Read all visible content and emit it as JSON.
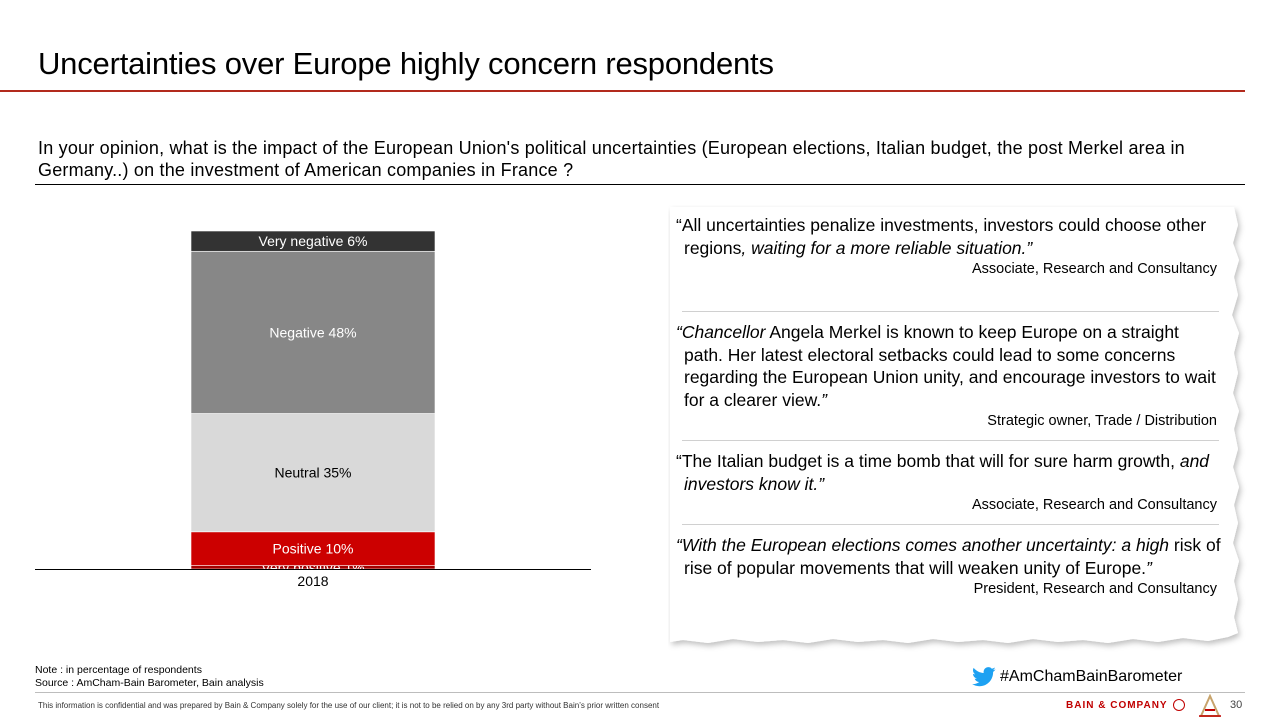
{
  "title": "Uncertainties over Europe highly concern respondents",
  "question": "In your opinion, what is the impact of the European Union's political uncertainties (European elections, Italian budget, the post Merkel area in Germany..) on the investment of American companies in France ?",
  "chart_data": {
    "type": "bar",
    "stacked": true,
    "categories": [
      "2018"
    ],
    "unit": "%",
    "series": [
      {
        "name": "Very positive",
        "label": "Very positive 1%",
        "values": [
          1
        ],
        "color": "#a40000",
        "text_color": "#ffffff"
      },
      {
        "name": "Positive",
        "label": "Positive 10%",
        "values": [
          10
        ],
        "color": "#cc0000",
        "text_color": "#ffffff"
      },
      {
        "name": "Neutral",
        "label": "Neutral 35%",
        "values": [
          35
        ],
        "color": "#d9d9d9",
        "text_color": "#000000"
      },
      {
        "name": "Negative",
        "label": "Negative 48%",
        "values": [
          48
        ],
        "color": "#878787",
        "text_color": "#ffffff"
      },
      {
        "name": "Very negative",
        "label": "Very negative 6%",
        "values": [
          6
        ],
        "color": "#333333",
        "text_color": "#ffffff"
      }
    ],
    "ylim": [
      0,
      100
    ],
    "legend": "none"
  },
  "quotes": [
    {
      "parts": [
        [
          "“All uncertainties penalize investments, investors could choose other regions",
          false
        ],
        [
          ", waiting for a more reliable situation.”",
          true
        ]
      ],
      "attribution": "Associate, Research and Consultancy"
    },
    {
      "parts": [
        [
          "“Chancellor",
          true
        ],
        [
          " Angela Merkel is known to keep Europe on a straight path. Her latest electoral setbacks could lead to some concerns regarding the European Union unity, and encourage investors to wait for a clearer view.",
          false
        ],
        [
          "”",
          true
        ]
      ],
      "attribution": "Strategic owner, Trade / Distribution"
    },
    {
      "parts": [
        [
          "“The Italian budget is a time bomb that will for sure harm growth, ",
          false
        ],
        [
          "and investors know it.”",
          true
        ]
      ],
      "attribution": "Associate, Research and Consultancy"
    },
    {
      "parts": [
        [
          "“With the European elections comes another uncertainty: a high",
          true
        ],
        [
          " risk of rise of popular movements that will weaken unity of Europe.",
          false
        ],
        [
          "”",
          true
        ]
      ],
      "attribution": "President, Research and Consultancy"
    }
  ],
  "note": "Note : in percentage of respondents",
  "source": "Source : AmCham-Bain Barometer, Bain analysis",
  "hashtag": "#AmChamBainBarometer",
  "confidential": "This information is confidential and was prepared by Bain & Company solely for the use of our client; it is not to be relied on by any 3rd party without Bain’s prior written consent",
  "brand": "BAIN & COMPANY",
  "page_number": "30",
  "colors": {
    "accent": "#b22a1d",
    "brand_red": "#c00000",
    "twitter": "#1da1f2"
  },
  "icons": {
    "hashtag": "twitter-bird-icon",
    "brand": "bain-circle-icon",
    "logo": "amcham-logo-icon"
  }
}
